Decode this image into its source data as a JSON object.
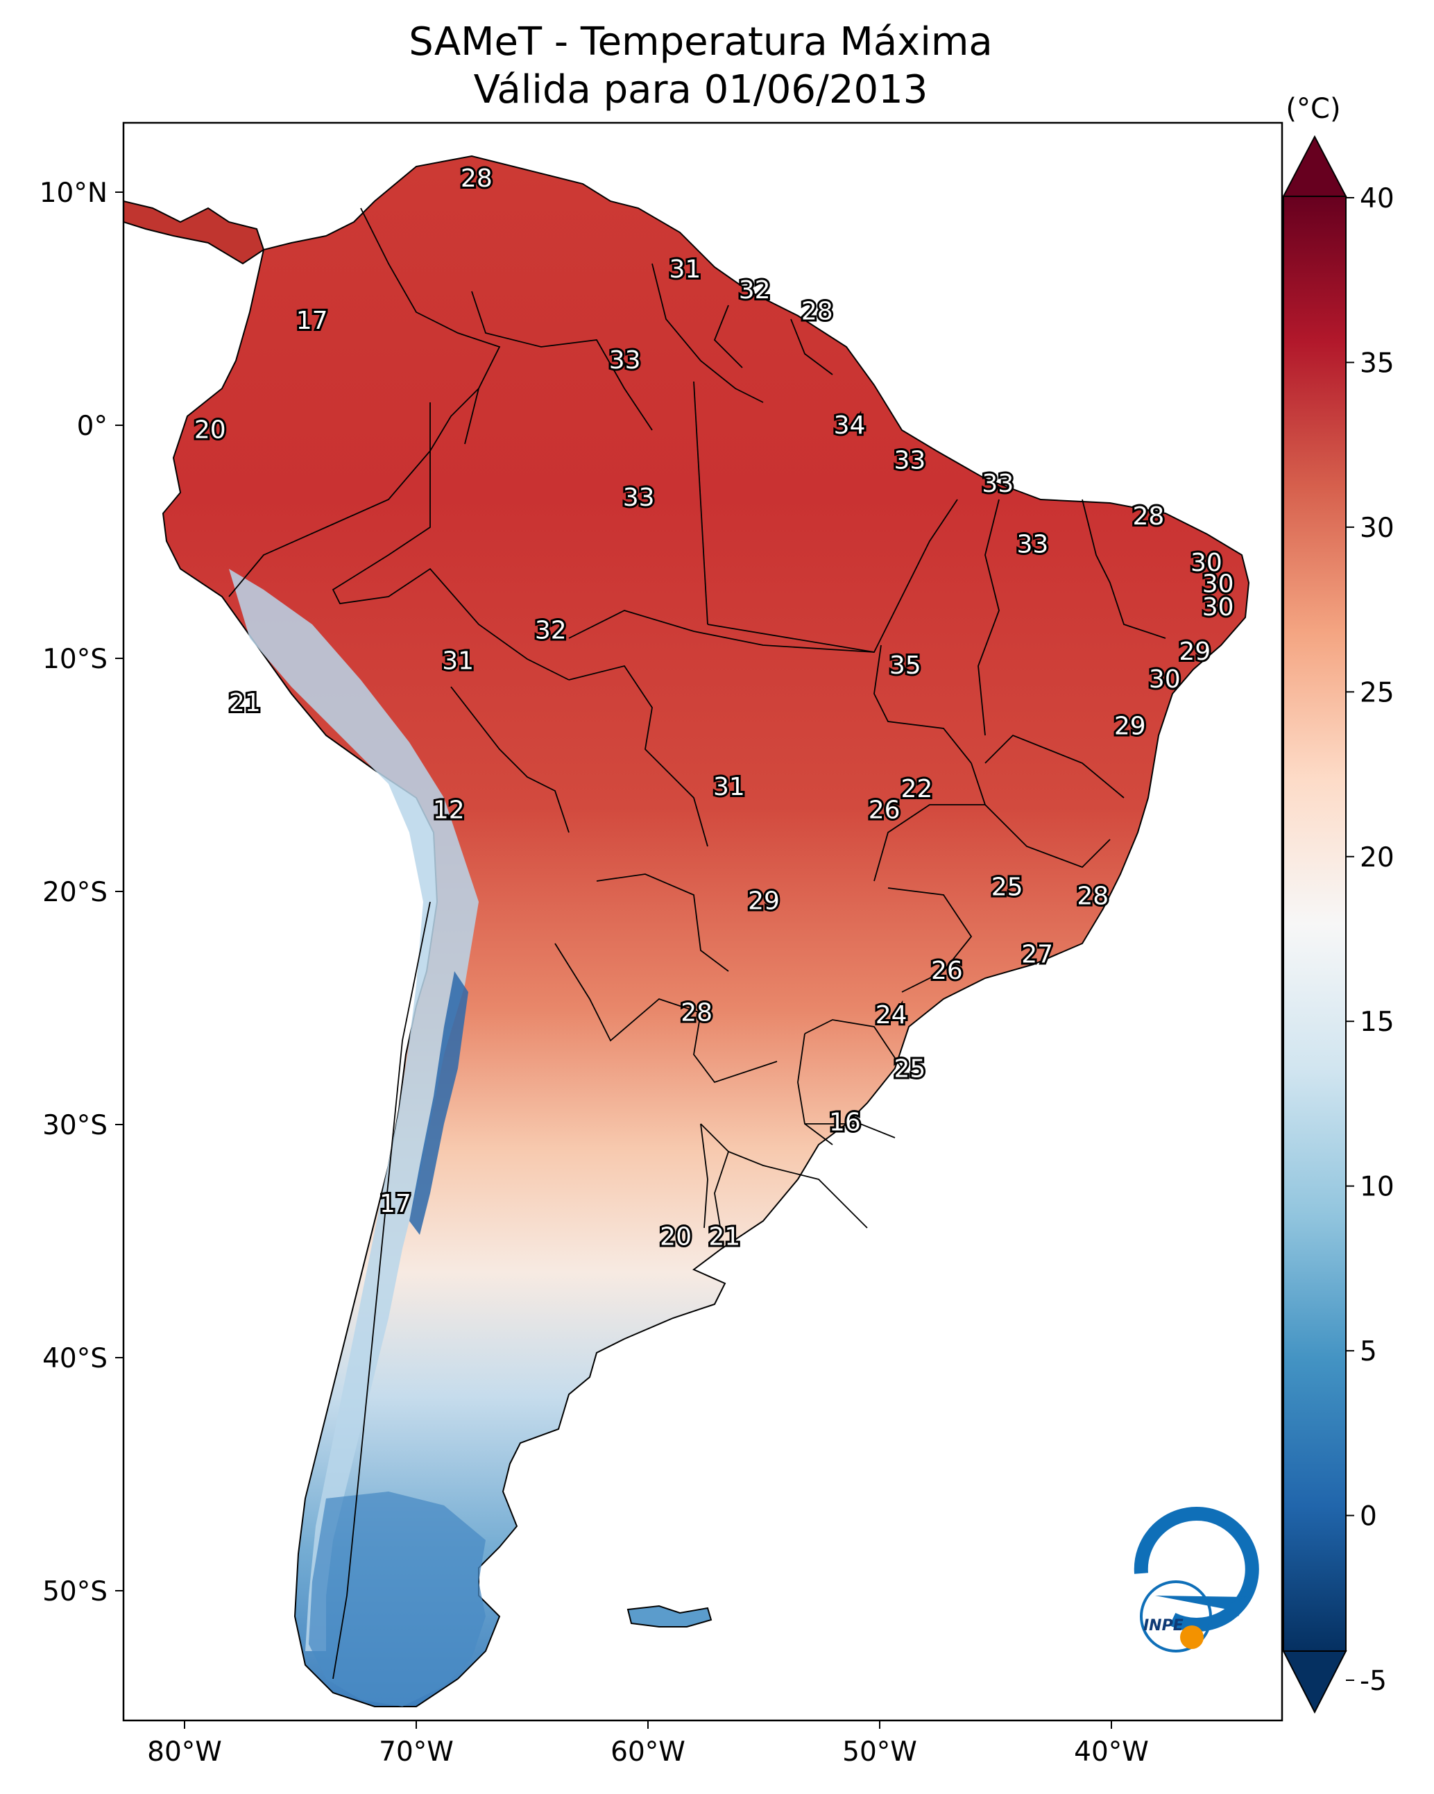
{
  "title": {
    "line1": "SAMeT - Temperatura Máxima",
    "line2": "Válida para 01/06/2013"
  },
  "map": {
    "lon_ticks": [
      "80°W",
      "70°W",
      "60°W",
      "50°W",
      "40°W"
    ],
    "lat_ticks": [
      "10°N",
      "0°",
      "10°S",
      "20°S",
      "30°S",
      "40°S",
      "50°S"
    ],
    "labels": [
      {
        "text": "28",
        "lon": -67.4,
        "lat": 10.6
      },
      {
        "text": "17",
        "lon": -74.5,
        "lat": 4.5
      },
      {
        "text": "31",
        "lon": -58.4,
        "lat": 6.7
      },
      {
        "text": "32",
        "lon": -55.4,
        "lat": 5.8
      },
      {
        "text": "28",
        "lon": -52.7,
        "lat": 4.9
      },
      {
        "text": "33",
        "lon": -61.0,
        "lat": 2.8
      },
      {
        "text": "20",
        "lon": -78.9,
        "lat": -0.2
      },
      {
        "text": "34",
        "lon": -51.3,
        "lat": 0.0
      },
      {
        "text": "33",
        "lon": -48.7,
        "lat": -1.5
      },
      {
        "text": "33",
        "lon": -60.4,
        "lat": -3.1
      },
      {
        "text": "33",
        "lon": -44.9,
        "lat": -2.5
      },
      {
        "text": "28",
        "lon": -38.4,
        "lat": -3.9
      },
      {
        "text": "33",
        "lon": -43.4,
        "lat": -5.1
      },
      {
        "text": "30",
        "lon": -35.9,
        "lat": -5.9
      },
      {
        "text": "30",
        "lon": -35.4,
        "lat": -6.8
      },
      {
        "text": "30",
        "lon": -35.4,
        "lat": -7.8
      },
      {
        "text": "32",
        "lon": -64.2,
        "lat": -8.8
      },
      {
        "text": "31",
        "lon": -68.2,
        "lat": -10.1
      },
      {
        "text": "35",
        "lon": -48.9,
        "lat": -10.3
      },
      {
        "text": "29",
        "lon": -36.4,
        "lat": -9.7
      },
      {
        "text": "30",
        "lon": -37.7,
        "lat": -10.9
      },
      {
        "text": "21",
        "lon": -77.4,
        "lat": -11.9
      },
      {
        "text": "29",
        "lon": -39.2,
        "lat": -12.9
      },
      {
        "text": "12",
        "lon": -68.6,
        "lat": -16.5
      },
      {
        "text": "22",
        "lon": -48.4,
        "lat": -15.6
      },
      {
        "text": "31",
        "lon": -56.5,
        "lat": -15.5
      },
      {
        "text": "26",
        "lon": -49.8,
        "lat": -16.5
      },
      {
        "text": "25",
        "lon": -44.5,
        "lat": -19.8
      },
      {
        "text": "28",
        "lon": -40.8,
        "lat": -20.2
      },
      {
        "text": "29",
        "lon": -55.0,
        "lat": -20.4
      },
      {
        "text": "27",
        "lon": -43.2,
        "lat": -22.7
      },
      {
        "text": "26",
        "lon": -47.1,
        "lat": -23.4
      },
      {
        "text": "28",
        "lon": -57.9,
        "lat": -25.2
      },
      {
        "text": "24",
        "lon": -49.5,
        "lat": -25.3
      },
      {
        "text": "25",
        "lon": -48.7,
        "lat": -27.6
      },
      {
        "text": "16",
        "lon": -51.5,
        "lat": -29.9
      },
      {
        "text": "17",
        "lon": -70.9,
        "lat": -33.4
      },
      {
        "text": "20",
        "lon": -58.8,
        "lat": -34.8
      },
      {
        "text": "21",
        "lon": -56.7,
        "lat": -34.8
      }
    ],
    "logo_text": "INPE"
  },
  "colorbar": {
    "unit": "(°C)",
    "ticks": [
      "-5",
      "0",
      "5",
      "10",
      "15",
      "20",
      "25",
      "30",
      "35",
      "40"
    ],
    "tick_values": [
      -5,
      0,
      5,
      10,
      15,
      20,
      25,
      30,
      35,
      40
    ],
    "range": [
      -5,
      40
    ],
    "colors_low_to_high": [
      "#053061",
      "#2166ac",
      "#4393c3",
      "#92c5de",
      "#d1e5f0",
      "#f7f7f7",
      "#fddbc7",
      "#f4a582",
      "#d6604d",
      "#b2182b",
      "#67001f"
    ]
  }
}
